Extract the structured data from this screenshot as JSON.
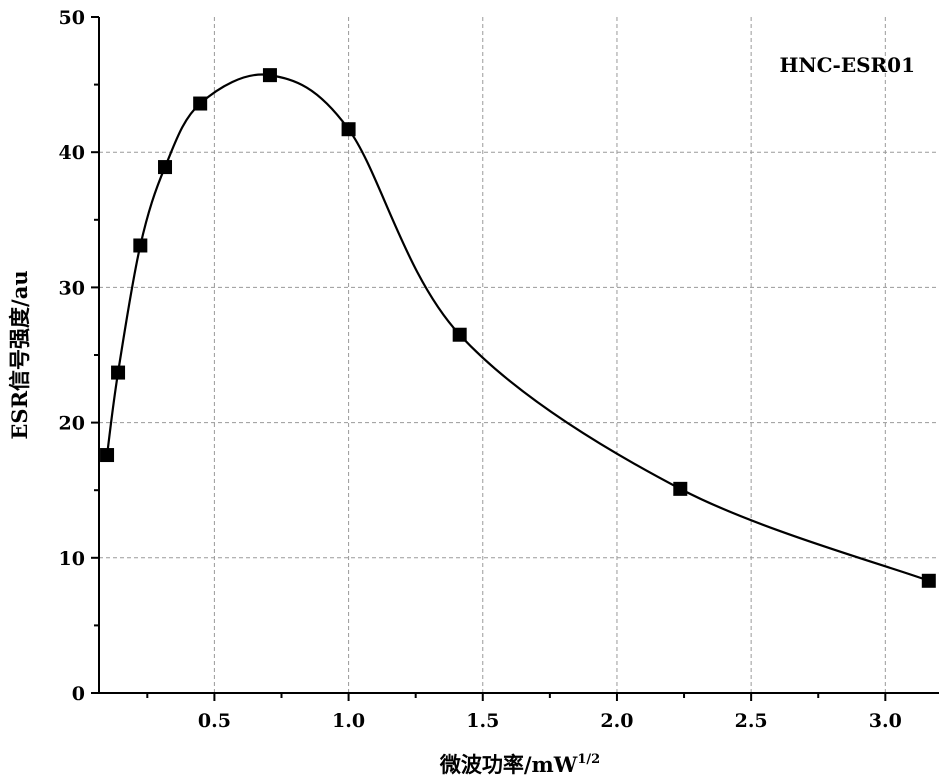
{
  "chart_data": {
    "type": "scatter",
    "annotation": "HNC-ESR01",
    "xlabel": "微波功率/mW",
    "xlabel_sup": "1/2",
    "ylabel": "ESR信号强度/au",
    "xlim": [
      0.07,
      3.2
    ],
    "ylim": [
      0,
      50
    ],
    "xticks": [
      0.5,
      1.0,
      1.5,
      2.0,
      2.5,
      3.0
    ],
    "xtick_labels": [
      "0.5",
      "1.0",
      "1.5",
      "2.0",
      "2.5",
      "3.0"
    ],
    "yticks": [
      0,
      10,
      20,
      30,
      40,
      50
    ],
    "ytick_labels": [
      "0",
      "10",
      "20",
      "30",
      "40",
      "50"
    ],
    "grid": true,
    "marker": "square",
    "line": "smooth",
    "series": [
      {
        "x": [
          0.1,
          0.141,
          0.224,
          0.316,
          0.447,
          0.707,
          1.0,
          1.414,
          2.236,
          3.162
        ],
        "y": [
          17.6,
          23.7,
          33.1,
          38.9,
          43.6,
          45.7,
          41.7,
          26.5,
          15.1,
          8.3
        ]
      }
    ]
  }
}
